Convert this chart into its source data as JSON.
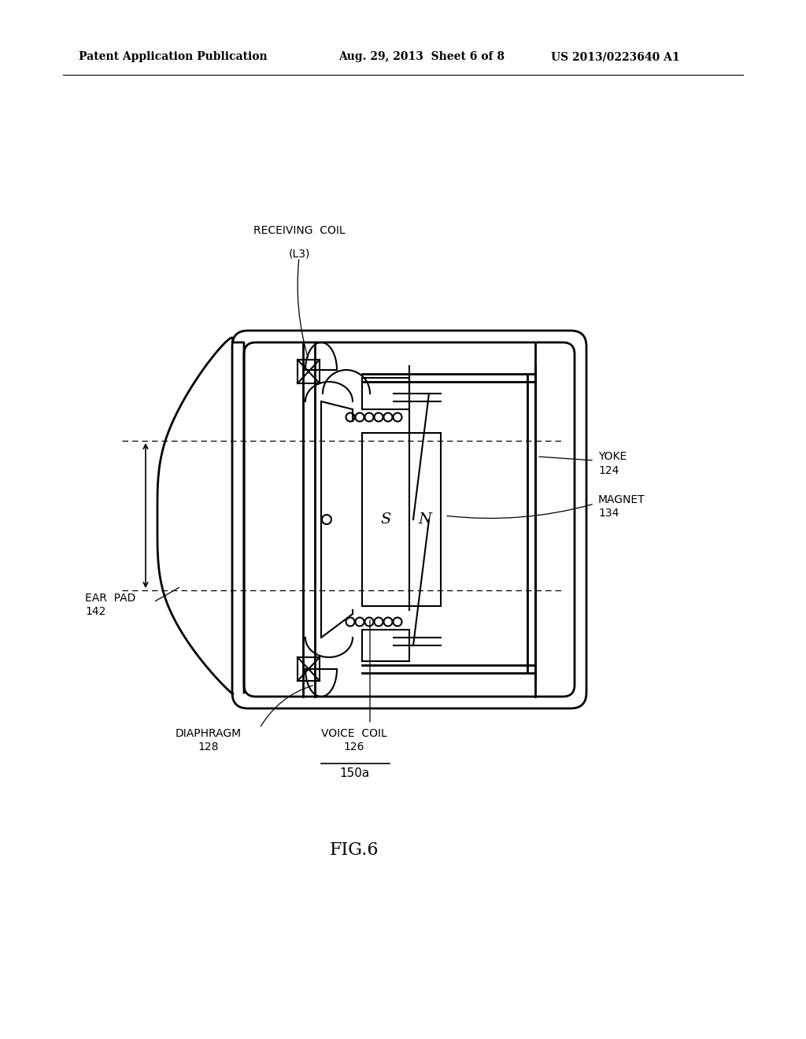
{
  "bg_color": "#ffffff",
  "line_color": "#000000",
  "header_left": "Patent Application Publication",
  "header_mid": "Aug. 29, 2013  Sheet 6 of 8",
  "header_right": "US 2013/0223640 A1",
  "fig_label": "FIG.6",
  "ref_150a": "150a",
  "label_receiving_coil": "RECEIVING  COIL",
  "label_l3": "(L3)",
  "label_yoke": "YOKE\n124",
  "label_magnet": "MAGNET\n134",
  "label_ear_pad": "EAR  PAD\n142",
  "label_diaphragm": "DIAPHRAGM\n128",
  "label_voice_coil": "VOICE  COIL\n126"
}
